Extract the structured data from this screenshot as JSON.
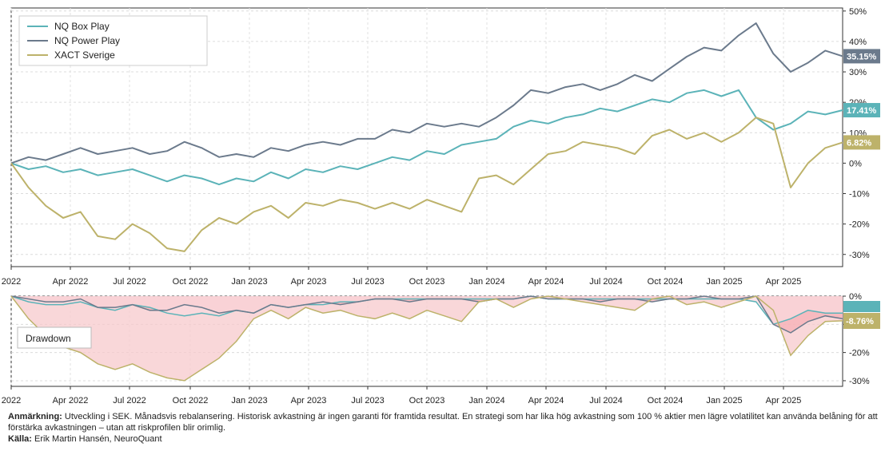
{
  "chart_data": [
    {
      "type": "line",
      "x_tick_labels": [
        "2022",
        "Apr 2022",
        "Jul 2022",
        "Oct 2022",
        "Jan 2023",
        "Apr 2023",
        "Jul 2023",
        "Oct 2023",
        "Jan 2024",
        "Apr 2024",
        "Jul 2024",
        "Oct 2024",
        "Jan 2025",
        "Apr 2025"
      ],
      "y_tick_labels": [
        "50%",
        "40%",
        "30%",
        "20%",
        "10%",
        "0%",
        "-10%",
        "-20%",
        "-30%"
      ],
      "ylim": [
        -34,
        51
      ],
      "grid": true,
      "legend_position": "top-left",
      "series": [
        {
          "name": "NQ Box Play",
          "color": "#5bb3b8",
          "end_label": "17.41%",
          "values": [
            0,
            -2,
            -1,
            -3,
            -2,
            -4,
            -3,
            -2,
            -4,
            -6,
            -4,
            -5,
            -7,
            -5,
            -6,
            -3,
            -5,
            -2,
            -3,
            -1,
            -2,
            0,
            2,
            1,
            4,
            3,
            6,
            7,
            8,
            12,
            14,
            13,
            15,
            16,
            18,
            17,
            19,
            21,
            20,
            23,
            24,
            22,
            24,
            15,
            11,
            13,
            17,
            16,
            17.41
          ]
        },
        {
          "name": "NQ Power Play",
          "color": "#6b7a8c",
          "end_label": "35.15%",
          "values": [
            0,
            2,
            1,
            3,
            5,
            3,
            4,
            5,
            3,
            4,
            7,
            5,
            2,
            3,
            2,
            5,
            4,
            6,
            7,
            6,
            8,
            8,
            11,
            10,
            13,
            12,
            13,
            12,
            15,
            19,
            24,
            23,
            25,
            26,
            24,
            26,
            29,
            27,
            31,
            35,
            38,
            37,
            42,
            46,
            36,
            30,
            33,
            37,
            35.15
          ]
        },
        {
          "name": "XACT Sverige",
          "color": "#bdb26a",
          "end_label": "6.82%",
          "values": [
            0,
            -8,
            -14,
            -18,
            -16,
            -24,
            -25,
            -20,
            -23,
            -28,
            -29,
            -22,
            -18,
            -20,
            -16,
            -14,
            -18,
            -13,
            -14,
            -12,
            -13,
            -15,
            -13,
            -15,
            -12,
            -14,
            -16,
            -5,
            -4,
            -7,
            -2,
            3,
            4,
            7,
            6,
            5,
            3,
            9,
            11,
            8,
            10,
            7,
            10,
            15,
            13,
            -8,
            0,
            5,
            6.82
          ]
        }
      ]
    },
    {
      "type": "area",
      "label": "Drawdown",
      "x_tick_labels": [
        "2022",
        "Apr 2022",
        "Jul 2022",
        "Oct 2022",
        "Jan 2023",
        "Apr 2023",
        "Jul 2023",
        "Oct 2023",
        "Jan 2024",
        "Apr 2024",
        "Jul 2024",
        "Oct 2024",
        "Jan 2025",
        "Apr 2025"
      ],
      "y_tick_labels": [
        "0%",
        "-10%",
        "-20%",
        "-30%"
      ],
      "ylim": [
        -32,
        0
      ],
      "end_labels": [
        "-8.76%"
      ],
      "series": [
        {
          "name": "NQ Box Play",
          "color": "#5bb3b8",
          "values": [
            0,
            -2,
            -3,
            -3,
            -2,
            -4,
            -5,
            -3,
            -4,
            -6,
            -7,
            -6,
            -7,
            -5,
            -6,
            -3,
            -4,
            -3,
            -3,
            -2,
            -2,
            -1,
            -1,
            -1,
            -1,
            -1,
            -1,
            -1,
            -1,
            -1,
            0,
            -1,
            -1,
            -1,
            -1,
            -1,
            -1,
            -1,
            -1,
            -1,
            -1,
            -1,
            -1,
            -2,
            -10,
            -8,
            -5,
            -6,
            -6
          ]
        },
        {
          "name": "NQ Power Play",
          "color": "#6b7a8c",
          "values": [
            0,
            -1,
            -2,
            -2,
            -1,
            -4,
            -4,
            -3,
            -5,
            -5,
            -3,
            -4,
            -6,
            -5,
            -6,
            -3,
            -4,
            -3,
            -2,
            -3,
            -2,
            -1,
            -1,
            -2,
            -1,
            -1,
            -1,
            -2,
            -1,
            -1,
            0,
            -1,
            -1,
            -1,
            -2,
            -1,
            -1,
            -2,
            -1,
            -1,
            0,
            -1,
            -1,
            0,
            -10,
            -13,
            -9,
            -7,
            -8
          ]
        },
        {
          "name": "XACT Sverige",
          "color": "#bdb26a",
          "values": [
            0,
            -8,
            -14,
            -18,
            -20,
            -24,
            -26,
            -24,
            -27,
            -29,
            -30,
            -26,
            -22,
            -16,
            -8,
            -5,
            -8,
            -4,
            -6,
            -5,
            -7,
            -8,
            -6,
            -8,
            -5,
            -7,
            -9,
            -2,
            -1,
            -4,
            -1,
            0,
            -1,
            -2,
            -3,
            -4,
            -5,
            -1,
            0,
            -3,
            -2,
            -4,
            -2,
            0,
            -5,
            -21,
            -14,
            -9,
            -8.76
          ]
        }
      ]
    }
  ],
  "footnote": {
    "bold_prefix": "Anmärkning:",
    "text": " Utveckling i SEK. Månadsvis rebalansering. Historisk avkastning är ingen garanti för framtida resultat. En strategi som har lika hög avkastning som 100 % aktier men lägre volatilitet kan använda belåning för att förstärka avkastningen – utan att riskprofilen blir orimlig.",
    "source_prefix": "Källa:",
    "source_text": " Erik Martin Hansén, NeuroQuant"
  }
}
